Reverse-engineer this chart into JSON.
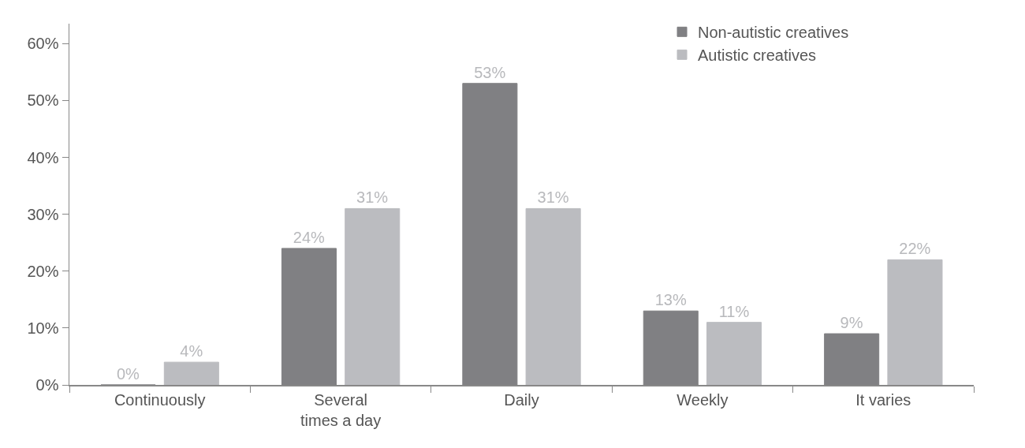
{
  "chart_data": {
    "type": "bar",
    "categories": [
      "Continuously",
      "Several\ntimes a day",
      "Daily",
      "Weekly",
      "It varies"
    ],
    "series": [
      {
        "name": "Non-autistic creatives",
        "color": "#808083",
        "values": [
          0,
          24,
          53,
          13,
          9
        ],
        "value_labels": [
          "0%",
          "24%",
          "53%",
          "13%",
          "9%"
        ]
      },
      {
        "name": "Autistic creatives",
        "color": "#bbbcc0",
        "values": [
          4,
          31,
          31,
          11,
          22
        ],
        "value_labels": [
          "4%",
          "31%",
          "31%",
          "11%",
          "22%"
        ]
      }
    ],
    "ylim": [
      0,
      63.5
    ],
    "yticks": [
      {
        "value": 0,
        "label": "0%"
      },
      {
        "value": 10,
        "label": "10%"
      },
      {
        "value": 20,
        "label": "20%"
      },
      {
        "value": 30,
        "label": "30%"
      },
      {
        "value": 40,
        "label": "40%"
      },
      {
        "value": 50,
        "label": "50%"
      },
      {
        "value": 60,
        "label": "60%"
      }
    ],
    "grid": false,
    "legend": "top right"
  }
}
